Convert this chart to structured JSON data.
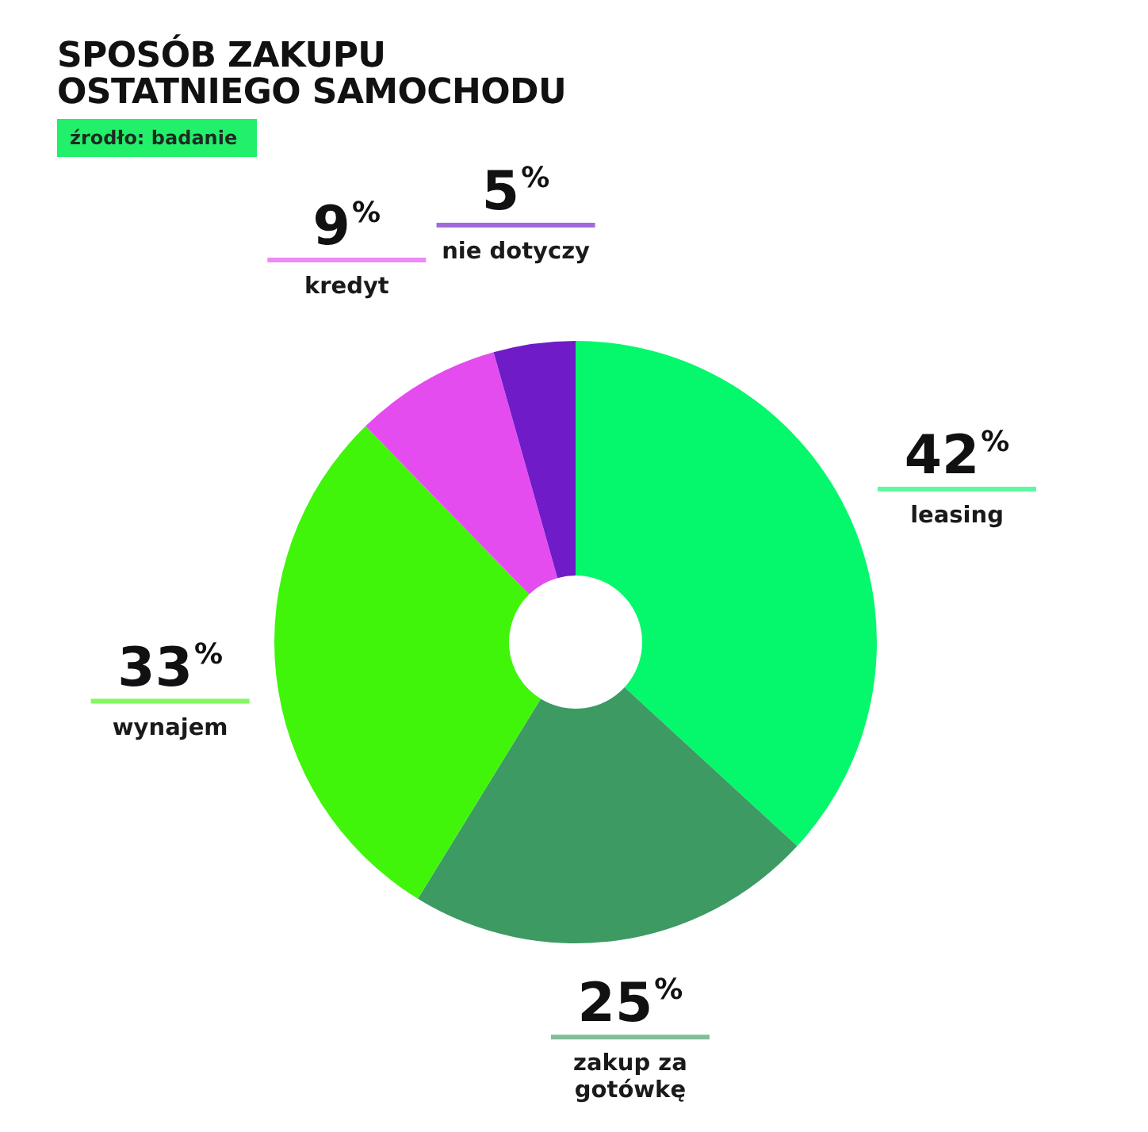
{
  "chart_data": {
    "type": "donut",
    "title": "SPOSÓB ZAKUPU OSTATNIEGO SAMOCHODU",
    "subtitle": "źrodło: badanie",
    "categories": [
      "leasing",
      "zakup za gotówkę",
      "wynajem",
      "kredyt",
      "nie dotyczy"
    ],
    "values": [
      42,
      25,
      33,
      9,
      5
    ],
    "colors": [
      "#05f86c",
      "#3d9a63",
      "#40f50a",
      "#e54cf0",
      "#6f1bc7"
    ],
    "value_labels": [
      "42$^{%}$",
      "25$^{%}$",
      "33$^{%}$",
      "9$^{%}$",
      "5$^{%}$"
    ]
  }
}
